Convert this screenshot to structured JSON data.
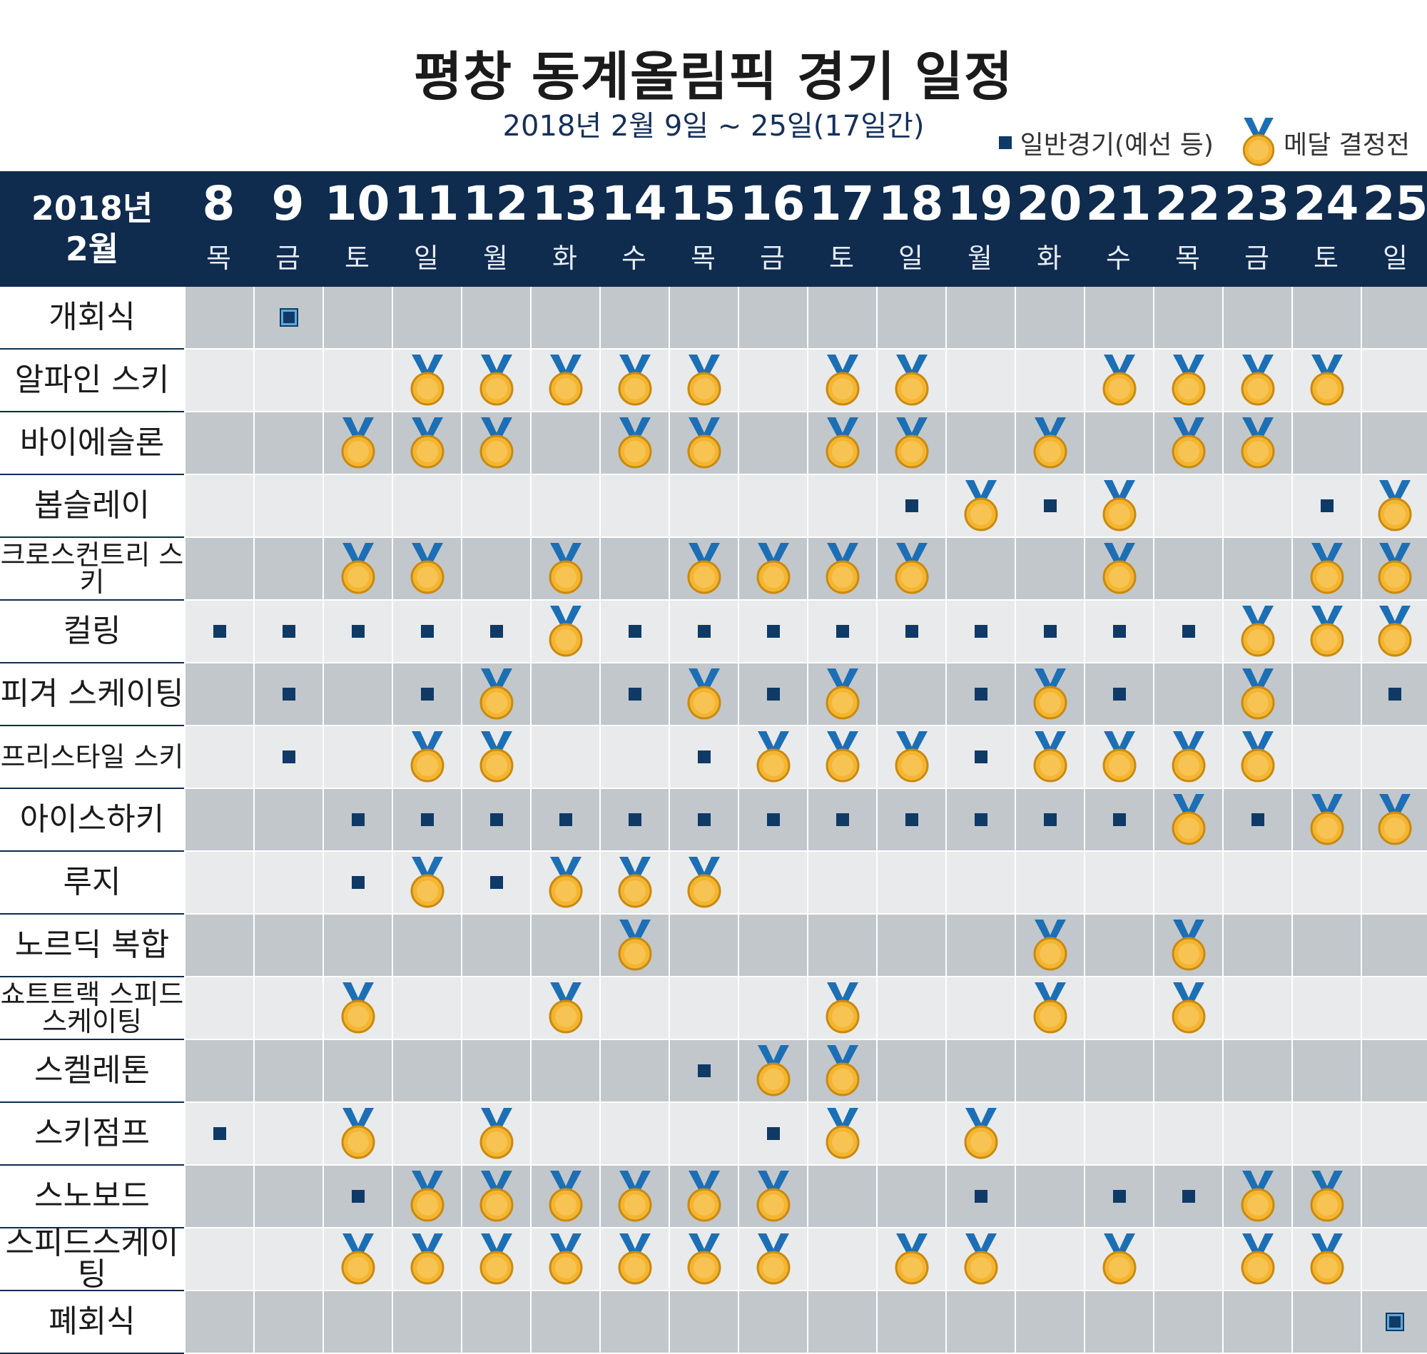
{
  "title": "평창 동계올림픽 경기 일정",
  "subtitle": "2018년 2월 9일 ~ 25일(17일간)",
  "legend": {
    "regular_label": "일반경기(예선 등)",
    "medal_label": "메달 결정전"
  },
  "colors": {
    "header_bg": "#0f2b4e",
    "row_dark": "#c2c7cc",
    "row_light": "#e9eaeb",
    "square": "#0f3a66",
    "medal_gold": "#f4b531",
    "ribbon": "#1c6fb5"
  },
  "chart_data": {
    "type": "table",
    "header": {
      "year": "2018년",
      "month": "2월"
    },
    "days": [
      {
        "num": "8",
        "wd": "목"
      },
      {
        "num": "9",
        "wd": "금"
      },
      {
        "num": "10",
        "wd": "토"
      },
      {
        "num": "11",
        "wd": "일"
      },
      {
        "num": "12",
        "wd": "월"
      },
      {
        "num": "13",
        "wd": "화"
      },
      {
        "num": "14",
        "wd": "수"
      },
      {
        "num": "15",
        "wd": "목"
      },
      {
        "num": "16",
        "wd": "금"
      },
      {
        "num": "17",
        "wd": "토"
      },
      {
        "num": "18",
        "wd": "일"
      },
      {
        "num": "19",
        "wd": "월"
      },
      {
        "num": "20",
        "wd": "화"
      },
      {
        "num": "21",
        "wd": "수"
      },
      {
        "num": "22",
        "wd": "목"
      },
      {
        "num": "23",
        "wd": "금"
      },
      {
        "num": "24",
        "wd": "토"
      },
      {
        "num": "25",
        "wd": "일"
      }
    ],
    "legend_codes": {
      "0": "none",
      "1": "regular",
      "2": "medal",
      "3": "ceremony"
    },
    "rows": [
      {
        "event": "개회식",
        "cells": [
          0,
          3,
          0,
          0,
          0,
          0,
          0,
          0,
          0,
          0,
          0,
          0,
          0,
          0,
          0,
          0,
          0,
          0
        ]
      },
      {
        "event": "알파인 스키",
        "cells": [
          0,
          0,
          0,
          2,
          2,
          2,
          2,
          2,
          0,
          2,
          2,
          0,
          0,
          2,
          2,
          2,
          2,
          0
        ]
      },
      {
        "event": "바이에슬론",
        "cells": [
          0,
          0,
          2,
          2,
          2,
          0,
          2,
          2,
          0,
          2,
          2,
          0,
          2,
          0,
          2,
          2,
          0,
          0
        ]
      },
      {
        "event": "봅슬레이",
        "cells": [
          0,
          0,
          0,
          0,
          0,
          0,
          0,
          0,
          0,
          0,
          1,
          2,
          1,
          2,
          0,
          0,
          1,
          2
        ]
      },
      {
        "event": "크로스컨트리 스키",
        "cells": [
          0,
          0,
          2,
          2,
          0,
          2,
          0,
          2,
          2,
          2,
          2,
          0,
          0,
          2,
          0,
          0,
          2,
          2
        ]
      },
      {
        "event": "컬링",
        "cells": [
          1,
          1,
          1,
          1,
          1,
          2,
          1,
          1,
          1,
          1,
          1,
          1,
          1,
          1,
          1,
          2,
          2,
          2
        ]
      },
      {
        "event": "피겨 스케이팅",
        "cells": [
          0,
          1,
          0,
          1,
          2,
          0,
          1,
          2,
          1,
          2,
          0,
          1,
          2,
          1,
          0,
          2,
          0,
          1
        ]
      },
      {
        "event": "프리스타일 스키",
        "cells": [
          0,
          1,
          0,
          2,
          2,
          0,
          0,
          1,
          2,
          2,
          2,
          1,
          2,
          2,
          2,
          2,
          0,
          0
        ]
      },
      {
        "event": "아이스하키",
        "cells": [
          0,
          0,
          1,
          1,
          1,
          1,
          1,
          1,
          1,
          1,
          1,
          1,
          1,
          1,
          2,
          1,
          2,
          2
        ]
      },
      {
        "event": "루지",
        "cells": [
          0,
          0,
          1,
          2,
          1,
          2,
          2,
          2,
          0,
          0,
          0,
          0,
          0,
          0,
          0,
          0,
          0,
          0
        ]
      },
      {
        "event": "노르딕 복합",
        "cells": [
          0,
          0,
          0,
          0,
          0,
          0,
          2,
          0,
          0,
          0,
          0,
          0,
          2,
          0,
          2,
          0,
          0,
          0
        ]
      },
      {
        "event": "쇼트트랙 스피드스케이팅",
        "cells": [
          0,
          0,
          2,
          0,
          0,
          2,
          0,
          0,
          0,
          2,
          0,
          0,
          2,
          0,
          2,
          0,
          0,
          0
        ]
      },
      {
        "event": "스켈레톤",
        "cells": [
          0,
          0,
          0,
          0,
          0,
          0,
          0,
          1,
          2,
          2,
          0,
          0,
          0,
          0,
          0,
          0,
          0,
          0
        ]
      },
      {
        "event": "스키점프",
        "cells": [
          1,
          0,
          2,
          0,
          2,
          0,
          0,
          0,
          1,
          2,
          0,
          2,
          0,
          0,
          0,
          0,
          0,
          0
        ]
      },
      {
        "event": "스노보드",
        "cells": [
          0,
          0,
          1,
          2,
          2,
          2,
          2,
          2,
          2,
          0,
          0,
          1,
          0,
          1,
          1,
          2,
          2,
          0
        ]
      },
      {
        "event": "스피드스케이팅",
        "cells": [
          0,
          0,
          2,
          2,
          2,
          2,
          2,
          2,
          2,
          0,
          2,
          2,
          0,
          2,
          0,
          2,
          2,
          0
        ]
      },
      {
        "event": "폐회식",
        "cells": [
          0,
          0,
          0,
          0,
          0,
          0,
          0,
          0,
          0,
          0,
          0,
          0,
          0,
          0,
          0,
          0,
          0,
          3
        ]
      }
    ]
  }
}
